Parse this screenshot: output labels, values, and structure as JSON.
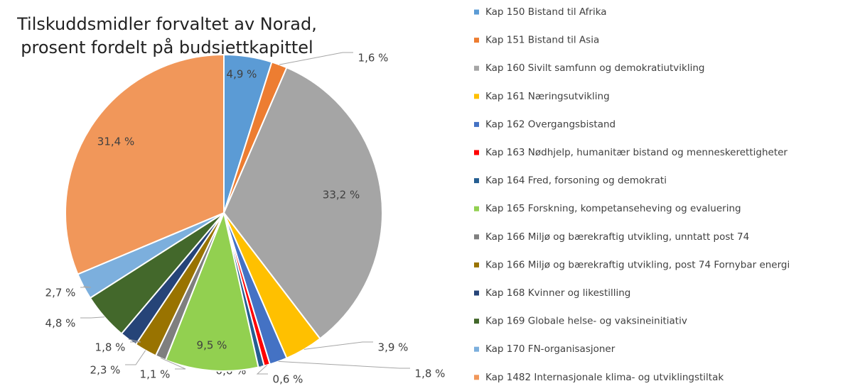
{
  "chart_data": {
    "type": "pie",
    "title": [
      "Tilskuddsmidler forvaltet av Norad,",
      "prosent fordelt på budsjettkapittel"
    ],
    "categories": [
      "Kap 150 Bistand til Afrika",
      "Kap 151 Bistand til Asia",
      "Kap 160 Sivilt samfunn og demokratiutvikling",
      "Kap 161 Næringsutvikling",
      "Kap 162 Overgangsbistand",
      "Kap 163 Nødhjelp, humanitær bistand og menneskerettigheter",
      "Kap 164 Fred, forsoning og demokrati",
      "Kap 165 Forskning, kompetanseheving og evaluering",
      "Kap 166 Miljø og bærekraftig utvikling, unntatt post 74",
      "Kap 166 Miljø og bærekraftig utvikling, post 74 Fornybar energi",
      "Kap 168 Kvinner og likestilling",
      "Kap 169 Globale helse- og vaksineinitiativ",
      "Kap 170 FN-organisasjoner",
      "Kap 1482 Internasjonale klima- og utviklingstiltak"
    ],
    "values": [
      4.9,
      1.6,
      33.2,
      3.9,
      1.8,
      0.6,
      0.6,
      9.5,
      1.1,
      2.3,
      1.8,
      4.8,
      2.7,
      31.4
    ],
    "value_labels": [
      "4,9 %",
      "1,6 %",
      "33,2 %",
      "3,9 %",
      "1,8 %",
      "0,6 %",
      "0,6 %",
      "9,5 %",
      "1,1 %",
      "2,3 %",
      "1,8 %",
      "4,8 %",
      "2,7 %",
      "31,4 %"
    ],
    "colors": [
      "#5b9bd5",
      "#ed7d31",
      "#a5a5a5",
      "#ffc000",
      "#4472c4",
      "#ff0000",
      "#255e91",
      "#92d050",
      "#7f7f7f",
      "#997300",
      "#264478",
      "#43682b",
      "#7cafdd",
      "#f1975a"
    ]
  }
}
